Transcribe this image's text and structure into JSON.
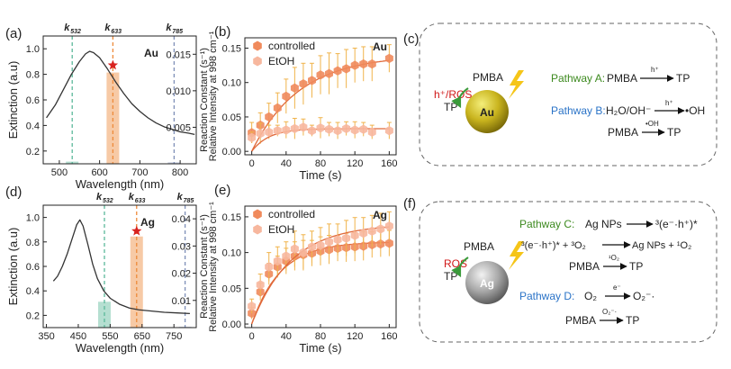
{
  "panel_labels": [
    "(a)",
    "(b)",
    "(c)",
    "(d)",
    "(e)",
    "(f)"
  ],
  "colors": {
    "green": "#5bb89a",
    "orange": "#ee8a3a",
    "blue": "#7e8fb8",
    "controlled": "#f08a5c",
    "etoh": "#f7b79e",
    "errorbar": "#f0b34a",
    "fit": "#e0693a",
    "curve": "#333333"
  },
  "chart_data": [
    {
      "panel": "(a)",
      "type": "line",
      "metal": "Au",
      "xlabel": "Wavelength (nm)",
      "ylabel": "Extinction (a.u)",
      "y2label": "Reaction Constant (s⁻¹)",
      "xlim": [
        460,
        840
      ],
      "ylim": [
        0.1,
        1.1
      ],
      "y2lim": [
        0,
        0.0175
      ],
      "xticks": [
        500,
        600,
        700,
        800
      ],
      "yticks": [
        0.2,
        0.4,
        0.6,
        0.8,
        1.0
      ],
      "y2ticks": [
        0.005,
        0.01,
        0.015
      ],
      "extinction": {
        "x": [
          468,
          490,
          510,
          530,
          550,
          565,
          575,
          585,
          600,
          620,
          640,
          660,
          680,
          700,
          720,
          740,
          760,
          780,
          800,
          820,
          836
        ],
        "y": [
          0.46,
          0.56,
          0.68,
          0.8,
          0.9,
          0.96,
          0.98,
          0.97,
          0.93,
          0.84,
          0.74,
          0.65,
          0.57,
          0.51,
          0.46,
          0.42,
          0.39,
          0.37,
          0.35,
          0.34,
          0.33
        ]
      },
      "laser_lines": [
        {
          "label": "k",
          "sub": "532",
          "x": 532,
          "color": "green"
        },
        {
          "label": "k",
          "sub": "633",
          "x": 633,
          "color": "orange"
        },
        {
          "label": "k",
          "sub": "785",
          "x": 785,
          "color": "blue"
        }
      ],
      "bars": [
        {
          "x": 532,
          "value": 0.0003,
          "color": "green"
        },
        {
          "x": 633,
          "value": 0.0125,
          "color": "orange"
        },
        {
          "x": 785,
          "value": 0.0002,
          "color": "blue"
        }
      ],
      "star": {
        "x": 633,
        "y2": 0.0135
      }
    },
    {
      "panel": "(b)",
      "type": "scatter",
      "metal": "Au",
      "xlabel": "Time (s)",
      "ylabel": "Relative Intensity at 998 cm⁻¹",
      "xlim": [
        -8,
        168
      ],
      "ylim": [
        -0.005,
        0.165
      ],
      "xticks": [
        0,
        40,
        80,
        120,
        160
      ],
      "yticks": [
        0.0,
        0.05,
        0.1,
        0.15
      ],
      "series": [
        {
          "name": "controlled",
          "color": "controlled",
          "x": [
            0,
            10,
            20,
            30,
            40,
            50,
            60,
            70,
            80,
            90,
            100,
            110,
            120,
            130,
            140,
            160
          ],
          "y": [
            0.027,
            0.038,
            0.05,
            0.063,
            0.08,
            0.092,
            0.098,
            0.103,
            0.111,
            0.113,
            0.117,
            0.12,
            0.125,
            0.127,
            0.127,
            0.135
          ],
          "err": [
            0.015,
            0.018,
            0.02,
            0.022,
            0.025,
            0.03,
            0.03,
            0.025,
            0.028,
            0.03,
            0.025,
            0.028,
            0.025,
            0.025,
            0.025,
            0.02
          ],
          "fit": {
            "a": 0.14,
            "k": 0.018
          }
        },
        {
          "name": "EtOH",
          "color": "etoh",
          "x": [
            0,
            10,
            20,
            30,
            40,
            50,
            60,
            70,
            80,
            90,
            100,
            110,
            120,
            130,
            140,
            160
          ],
          "y": [
            0.02,
            0.026,
            0.028,
            0.03,
            0.031,
            0.033,
            0.035,
            0.03,
            0.034,
            0.032,
            0.03,
            0.033,
            0.031,
            0.032,
            0.028,
            0.03
          ],
          "err": [
            0.008,
            0.015,
            0.01,
            0.008,
            0.012,
            0.015,
            0.012,
            0.008,
            0.015,
            0.01,
            0.012,
            0.01,
            0.012,
            0.01,
            0.01,
            0.012
          ],
          "fit": {
            "a": 0.033,
            "k": 0.05
          }
        }
      ]
    },
    {
      "panel": "(d)",
      "type": "line",
      "metal": "Ag",
      "xlabel": "Wavelength (nm)",
      "ylabel": "Extinction (a.u)",
      "y2label": "Reaction Constant (s⁻¹)",
      "xlim": [
        340,
        820
      ],
      "ylim": [
        0.1,
        1.1
      ],
      "y2lim": [
        0,
        0.045
      ],
      "xticks": [
        350,
        450,
        550,
        650,
        750
      ],
      "yticks": [
        0.2,
        0.4,
        0.6,
        0.8,
        1.0
      ],
      "y2ticks": [
        0.01,
        0.02,
        0.03,
        0.04
      ],
      "extinction": {
        "x": [
          372,
          385,
          400,
          415,
          430,
          445,
          455,
          465,
          480,
          495,
          510,
          530,
          550,
          580,
          610,
          640,
          680,
          720,
          760,
          800
        ],
        "y": [
          0.48,
          0.52,
          0.6,
          0.7,
          0.82,
          0.94,
          0.98,
          0.93,
          0.78,
          0.62,
          0.5,
          0.4,
          0.34,
          0.29,
          0.26,
          0.245,
          0.235,
          0.225,
          0.22,
          0.215
        ]
      },
      "laser_lines": [
        {
          "label": "k",
          "sub": "532",
          "x": 532,
          "color": "green"
        },
        {
          "label": "k",
          "sub": "633",
          "x": 633,
          "color": "orange"
        },
        {
          "label": "k",
          "sub": "785",
          "x": 785,
          "color": "blue"
        }
      ],
      "bars": [
        {
          "x": 532,
          "value": 0.0095,
          "color": "green"
        },
        {
          "x": 633,
          "value": 0.0335,
          "color": "orange"
        },
        {
          "x": 785,
          "value": 0.0003,
          "color": "blue"
        }
      ],
      "star": {
        "x": 633,
        "y2": 0.0355
      }
    },
    {
      "panel": "(e)",
      "type": "scatter",
      "metal": "Ag",
      "xlabel": "Time (s)",
      "ylabel": "Relative Intensity at 998 cm⁻¹",
      "xlim": [
        -8,
        168
      ],
      "ylim": [
        -0.005,
        0.165
      ],
      "xticks": [
        0,
        40,
        80,
        120,
        160
      ],
      "yticks": [
        0.0,
        0.05,
        0.1,
        0.15
      ],
      "series": [
        {
          "name": "controlled",
          "color": "controlled",
          "x": [
            0,
            10,
            20,
            30,
            40,
            50,
            60,
            70,
            80,
            90,
            100,
            110,
            120,
            130,
            140,
            150,
            160
          ],
          "y": [
            0.015,
            0.045,
            0.07,
            0.08,
            0.088,
            0.095,
            0.097,
            0.099,
            0.102,
            0.104,
            0.106,
            0.107,
            0.108,
            0.109,
            0.111,
            0.112,
            0.113
          ],
          "err": [
            0.008,
            0.012,
            0.015,
            0.015,
            0.018,
            0.02,
            0.02,
            0.018,
            0.02,
            0.02,
            0.018,
            0.02,
            0.02,
            0.02,
            0.018,
            0.018,
            0.018
          ],
          "fit": {
            "a": 0.115,
            "k": 0.03
          }
        },
        {
          "name": "EtOH",
          "color": "etoh",
          "x": [
            0,
            10,
            20,
            30,
            40,
            50,
            60,
            70,
            80,
            90,
            100,
            110,
            120,
            130,
            140,
            150,
            160
          ],
          "y": [
            0.025,
            0.055,
            0.08,
            0.088,
            0.095,
            0.105,
            0.1,
            0.108,
            0.11,
            0.115,
            0.118,
            0.12,
            0.124,
            0.127,
            0.13,
            0.133,
            0.137
          ],
          "err": [
            0.01,
            0.015,
            0.02,
            0.02,
            0.02,
            0.025,
            0.025,
            0.022,
            0.025,
            0.025,
            0.022,
            0.025,
            0.025,
            0.022,
            0.022,
            0.022,
            0.02
          ],
          "fit": {
            "a": 0.14,
            "k": 0.022
          }
        }
      ]
    }
  ],
  "scheme_c": {
    "particle": "Au",
    "pmba": "PMBA",
    "ros": "h⁺/ROS",
    "tp": "TP",
    "pathway_a": {
      "name": "Pathway A:",
      "reactant": "PMBA",
      "over": "h⁺",
      "product": "TP"
    },
    "pathway_b": {
      "name": "Pathway B:",
      "reactant": "H₂O/OH⁻",
      "over": "h⁺",
      "product": "•OH",
      "line2_reactant": "PMBA",
      "line2_over": "•OH",
      "line2_product": "TP"
    }
  },
  "scheme_f": {
    "particle": "Ag",
    "pmba": "PMBA",
    "ros": "ROS",
    "tp": "TP",
    "pathway_c": {
      "name": "Pathway C:",
      "reactant": "Ag NPs",
      "product": "³(e⁻·h⁺)*",
      "line2_left": "³(e⁻·h⁺)* + ³O₂",
      "line2_right": "Ag NPs + ¹O₂",
      "line3_reactant": "PMBA",
      "line3_over": "¹O₂",
      "line3_product": "TP"
    },
    "pathway_d": {
      "name": "Pathway D:",
      "reactant": "O₂",
      "over": "e⁻",
      "product": "O₂⁻·",
      "line2_reactant": "PMBA",
      "line2_over": "O₂⁻·",
      "line2_product": "TP"
    }
  }
}
